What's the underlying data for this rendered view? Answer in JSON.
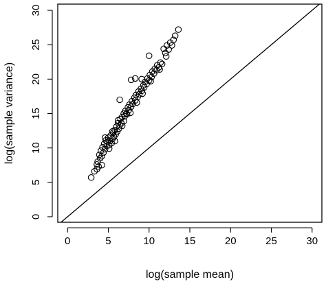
{
  "chart_data": {
    "type": "scatter",
    "xlabel": "log(sample mean)",
    "ylabel": "log(sample variance)",
    "xlim": [
      -1.2,
      31.2
    ],
    "ylim": [
      -0.8,
      30.9
    ],
    "x_ticks": [
      0,
      5,
      10,
      15,
      20,
      25,
      30
    ],
    "y_ticks": [
      0,
      5,
      10,
      15,
      20,
      25,
      30
    ],
    "reference_line": {
      "type": "identity",
      "slope": 1,
      "intercept": 0
    },
    "marker": "open-circle",
    "grid": false,
    "legend": "none",
    "series": [
      {
        "points": [
          [
            2.9,
            5.7
          ],
          [
            3.3,
            6.6
          ],
          [
            3.6,
            6.9
          ],
          [
            3.8,
            7.3
          ],
          [
            3.7,
            8.0
          ],
          [
            4.0,
            8.5
          ],
          [
            3.9,
            9.0
          ],
          [
            4.2,
            8.8
          ],
          [
            4.1,
            9.6
          ],
          [
            4.4,
            9.3
          ],
          [
            4.3,
            10.1
          ],
          [
            4.6,
            9.8
          ],
          [
            4.5,
            10.6
          ],
          [
            4.8,
            10.3
          ],
          [
            4.7,
            11.1
          ],
          [
            4.9,
            10.9
          ],
          [
            5.1,
            10.4
          ],
          [
            5.0,
            11.5
          ],
          [
            5.2,
            11.0
          ],
          [
            5.4,
            10.7
          ],
          [
            5.3,
            11.8
          ],
          [
            5.5,
            11.3
          ],
          [
            5.6,
            12.2
          ],
          [
            5.7,
            11.6
          ],
          [
            5.8,
            12.6
          ],
          [
            5.9,
            12.0
          ],
          [
            6.0,
            13.1
          ],
          [
            6.1,
            12.4
          ],
          [
            6.2,
            13.6
          ],
          [
            6.3,
            12.8
          ],
          [
            6.2,
            14.0
          ],
          [
            6.4,
            13.3
          ],
          [
            6.5,
            14.2
          ],
          [
            6.6,
            13.6
          ],
          [
            6.7,
            14.5
          ],
          [
            6.9,
            15.0
          ],
          [
            7.0,
            14.6
          ],
          [
            7.1,
            15.4
          ],
          [
            7.2,
            15.0
          ],
          [
            7.4,
            15.9
          ],
          [
            7.5,
            15.5
          ],
          [
            7.6,
            16.3
          ],
          [
            7.8,
            16.0
          ],
          [
            7.9,
            16.8
          ],
          [
            8.0,
            16.4
          ],
          [
            8.2,
            17.3
          ],
          [
            8.3,
            16.9
          ],
          [
            8.4,
            17.7
          ],
          [
            8.6,
            17.4
          ],
          [
            8.7,
            18.2
          ],
          [
            8.8,
            17.8
          ],
          [
            9.0,
            18.6
          ],
          [
            9.1,
            18.3
          ],
          [
            9.3,
            19.1
          ],
          [
            9.4,
            18.8
          ],
          [
            9.5,
            19.6
          ],
          [
            9.7,
            19.3
          ],
          [
            9.8,
            20.1
          ],
          [
            10.0,
            19.8
          ],
          [
            10.1,
            20.6
          ],
          [
            10.3,
            20.3
          ],
          [
            10.4,
            21.1
          ],
          [
            10.6,
            20.8
          ],
          [
            10.7,
            21.5
          ],
          [
            10.9,
            21.3
          ],
          [
            11.0,
            22.0
          ],
          [
            11.2,
            21.7
          ],
          [
            11.4,
            22.4
          ],
          [
            11.6,
            22.2
          ],
          [
            11.8,
            24.4
          ],
          [
            12.0,
            23.8
          ],
          [
            12.2,
            24.9
          ],
          [
            12.4,
            24.3
          ],
          [
            12.6,
            25.3
          ],
          [
            12.8,
            24.9
          ],
          [
            13.0,
            25.7
          ],
          [
            13.2,
            26.3
          ],
          [
            13.6,
            27.2
          ],
          [
            10.0,
            23.4
          ],
          [
            7.8,
            19.9
          ],
          [
            8.3,
            20.1
          ],
          [
            9.1,
            20.0
          ],
          [
            6.4,
            17.0
          ],
          [
            4.6,
            11.5
          ],
          [
            5.5,
            12.4
          ],
          [
            6.9,
            13.9
          ],
          [
            7.3,
            14.9
          ],
          [
            4.2,
            7.5
          ],
          [
            3.6,
            7.6
          ],
          [
            5.1,
            9.9
          ],
          [
            5.8,
            11.0
          ],
          [
            6.7,
            13.2
          ],
          [
            7.7,
            15.1
          ],
          [
            8.5,
            16.6
          ],
          [
            9.2,
            17.9
          ],
          [
            10.2,
            19.7
          ],
          [
            11.3,
            21.4
          ],
          [
            12.1,
            23.3
          ]
        ]
      }
    ]
  }
}
